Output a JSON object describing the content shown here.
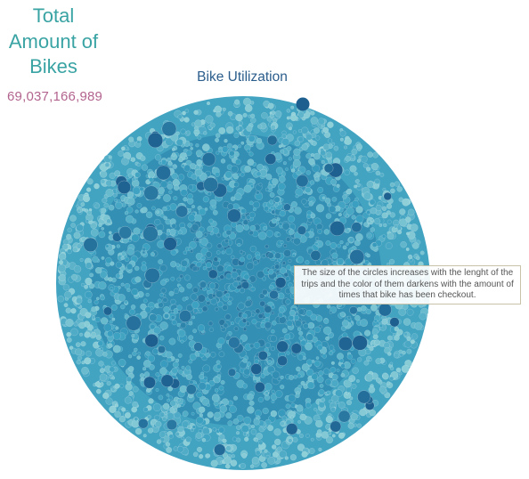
{
  "kpi": {
    "title": "Total Amount of Bikes",
    "value": "69,037,166,989"
  },
  "colors": {
    "kpi_title": "#3aa3a3",
    "kpi_value": "#b3648e",
    "chart_title": "#2b5d8c",
    "bubble_light": "#8fd0d8",
    "bubble_mid": "#3a9fc0",
    "bubble_dark": "#1d5f8f"
  },
  "chart_data": {
    "type": "packed-bubble",
    "title": "Bike Utilization",
    "annotation": "The size of the circles increases with the lenght of the trips and the color of them darkens with the amount of times that bike has been checkout.",
    "encoding": {
      "size": "trip length",
      "color": "number of checkouts (darker = more)"
    }
  }
}
